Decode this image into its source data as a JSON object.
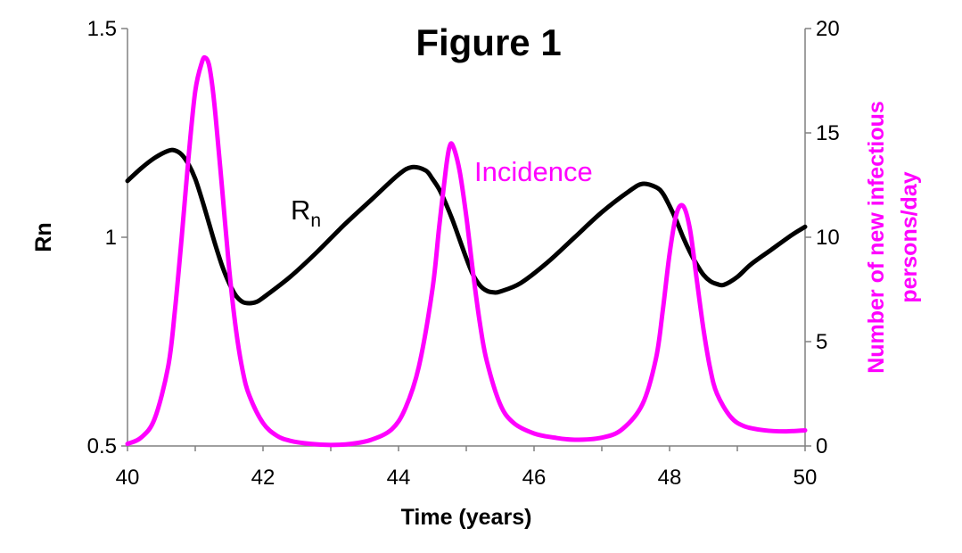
{
  "chart_data": {
    "type": "line",
    "title": "Figure 1",
    "xlabel": "Time (years)",
    "ylabel_left": "Rn",
    "ylabel_right_line1": "Number of new infectious",
    "ylabel_right_line2": "persons/day",
    "xlim": [
      40,
      50
    ],
    "ylim_left": [
      0.5,
      1.5
    ],
    "ylim_right": [
      0,
      20
    ],
    "x_ticks": [
      "40",
      "42",
      "44",
      "46",
      "48",
      "50"
    ],
    "y_left_ticks": [
      "0.5",
      "1",
      "1.5"
    ],
    "y_right_ticks": [
      "0",
      "5",
      "10",
      "15",
      "20"
    ],
    "grid": false,
    "legend": "none",
    "series": [
      {
        "label_main": "R",
        "label_sub": "n",
        "axis": "left",
        "color": "#000000",
        "x": [
          40,
          40.2,
          40.4,
          40.6,
          40.7,
          40.8,
          40.9,
          41.0,
          41.1,
          41.2,
          41.3,
          41.4,
          41.5,
          41.6,
          41.7,
          41.8,
          41.9,
          42.0,
          42.4,
          42.8,
          43.2,
          43.6,
          44.0,
          44.2,
          44.4,
          44.5,
          44.6,
          44.7,
          44.8,
          44.9,
          45.0,
          45.1,
          45.2,
          45.3,
          45.4,
          45.5,
          45.8,
          46.2,
          46.6,
          47.0,
          47.4,
          47.6,
          47.8,
          47.9,
          48.0,
          48.1,
          48.2,
          48.3,
          48.4,
          48.5,
          48.6,
          48.7,
          48.8,
          49.0,
          49.2,
          49.5,
          49.8,
          50.0
        ],
        "y": [
          1.135,
          1.165,
          1.19,
          1.207,
          1.208,
          1.198,
          1.175,
          1.14,
          1.09,
          1.035,
          0.98,
          0.93,
          0.89,
          0.86,
          0.845,
          0.842,
          0.845,
          0.855,
          0.905,
          0.965,
          1.03,
          1.09,
          1.15,
          1.168,
          1.16,
          1.14,
          1.115,
          1.08,
          1.04,
          0.995,
          0.95,
          0.91,
          0.885,
          0.872,
          0.868,
          0.87,
          0.89,
          0.94,
          1.0,
          1.06,
          1.11,
          1.128,
          1.12,
          1.105,
          1.075,
          1.04,
          1.0,
          0.965,
          0.935,
          0.91,
          0.895,
          0.888,
          0.886,
          0.905,
          0.935,
          0.97,
          1.005,
          1.025
        ]
      },
      {
        "label": "Incidence",
        "axis": "right",
        "color": "#ff00ff",
        "x": [
          40,
          40.2,
          40.4,
          40.6,
          40.7,
          40.8,
          40.9,
          41.0,
          41.1,
          41.15,
          41.2,
          41.25,
          41.3,
          41.4,
          41.5,
          41.6,
          41.7,
          41.8,
          42.0,
          42.2,
          42.4,
          42.7,
          43.0,
          43.3,
          43.6,
          43.9,
          44.1,
          44.3,
          44.5,
          44.6,
          44.7,
          44.75,
          44.8,
          44.9,
          45.0,
          45.1,
          45.2,
          45.3,
          45.5,
          45.7,
          46.0,
          46.3,
          46.6,
          47.0,
          47.3,
          47.6,
          47.8,
          47.9,
          48.0,
          48.1,
          48.2,
          48.3,
          48.4,
          48.5,
          48.6,
          48.7,
          48.9,
          49.1,
          49.4,
          49.7,
          50.0
        ],
        "y": [
          0.1,
          0.4,
          1.3,
          3.8,
          6.5,
          10.0,
          13.8,
          17.0,
          18.4,
          18.6,
          18.3,
          17.3,
          15.8,
          12.2,
          8.5,
          5.6,
          3.6,
          2.4,
          1.1,
          0.5,
          0.25,
          0.1,
          0.05,
          0.1,
          0.3,
          0.8,
          1.8,
          3.8,
          7.5,
          10.5,
          13.3,
          14.3,
          14.4,
          13.2,
          11.0,
          8.3,
          5.9,
          4.1,
          2.0,
          1.1,
          0.6,
          0.4,
          0.3,
          0.4,
          0.8,
          2.0,
          4.2,
          6.5,
          9.2,
          11.1,
          11.5,
          10.4,
          8.0,
          5.6,
          3.7,
          2.5,
          1.4,
          0.95,
          0.75,
          0.7,
          0.75
        ]
      }
    ]
  }
}
